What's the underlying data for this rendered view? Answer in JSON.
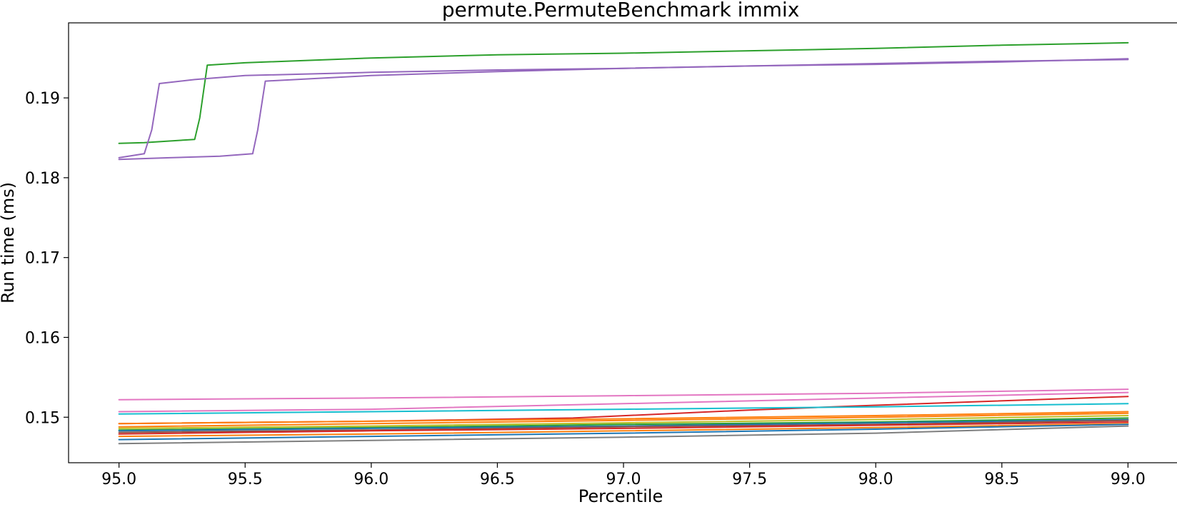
{
  "chart_data": {
    "type": "line",
    "title": "permute.PermuteBenchmark immix",
    "xlabel": "Percentile",
    "ylabel": "Run time (ms)",
    "xlim": [
      94.8,
      99.2
    ],
    "ylim": [
      0.1443,
      0.1994
    ],
    "xticks": [
      95.0,
      95.5,
      96.0,
      96.5,
      97.0,
      97.5,
      98.0,
      98.5,
      99.0
    ],
    "yticks": [
      0.15,
      0.16,
      0.17,
      0.18,
      0.19
    ],
    "grid": false,
    "legend": "none",
    "series": [
      {
        "color": "#2ca02c",
        "x": [
          95.0,
          95.1,
          95.2,
          95.3,
          95.32,
          95.35,
          95.5,
          96.0,
          96.5,
          97.0,
          97.5,
          98.0,
          98.5,
          99.0
        ],
        "y": [
          0.1843,
          0.1844,
          0.1846,
          0.1848,
          0.1875,
          0.1941,
          0.1944,
          0.195,
          0.1954,
          0.1956,
          0.1959,
          0.1962,
          0.1966,
          0.1969
        ]
      },
      {
        "color": "#9467bd",
        "x": [
          95.0,
          95.1,
          95.13,
          95.16,
          95.3,
          95.5,
          96.0,
          96.5,
          97.0,
          97.5,
          98.0,
          98.5,
          99.0
        ],
        "y": [
          0.1825,
          0.183,
          0.186,
          0.1918,
          0.1923,
          0.1928,
          0.1932,
          0.1935,
          0.1937,
          0.194,
          0.1942,
          0.1945,
          0.1949
        ]
      },
      {
        "color": "#9467bd",
        "x": [
          95.0,
          95.2,
          95.4,
          95.53,
          95.55,
          95.58,
          96.0,
          96.5,
          97.0,
          97.5,
          98.0,
          98.5,
          99.0
        ],
        "y": [
          0.1823,
          0.1825,
          0.1827,
          0.183,
          0.186,
          0.1921,
          0.1928,
          0.1933,
          0.1937,
          0.194,
          0.1943,
          0.1946,
          0.1948
        ]
      },
      {
        "color": "#e377c2",
        "x": [
          95.0,
          96.0,
          97.0,
          98.0,
          99.0
        ],
        "y": [
          0.1522,
          0.1524,
          0.1527,
          0.153,
          0.1535
        ]
      },
      {
        "color": "#e377c2",
        "x": [
          95.0,
          96.0,
          97.0,
          98.0,
          99.0
        ],
        "y": [
          0.1507,
          0.151,
          0.1517,
          0.1524,
          0.1531
        ]
      },
      {
        "color": "#d62728",
        "x": [
          95.0,
          96.0,
          96.8,
          97.5,
          98.0,
          99.0
        ],
        "y": [
          0.1492,
          0.1495,
          0.1499,
          0.1509,
          0.1515,
          0.1526
        ]
      },
      {
        "color": "#17becf",
        "x": [
          95.0,
          96.0,
          97.0,
          98.0,
          99.0
        ],
        "y": [
          0.1504,
          0.1507,
          0.151,
          0.1513,
          0.1517
        ]
      },
      {
        "color": "#ff7f0e",
        "x": [
          95.0,
          96.0,
          97.0,
          98.0,
          99.0
        ],
        "y": [
          0.1492,
          0.1495,
          0.1498,
          0.1502,
          0.1507
        ]
      },
      {
        "color": "#ff7f0e",
        "x": [
          95.0,
          96.0,
          97.0,
          98.0,
          99.0
        ],
        "y": [
          0.1488,
          0.1492,
          0.1496,
          0.15,
          0.1505
        ]
      },
      {
        "color": "#bcbd22",
        "x": [
          95.0,
          96.0,
          97.0,
          98.0,
          99.0
        ],
        "y": [
          0.1486,
          0.1489,
          0.1493,
          0.1497,
          0.1502
        ]
      },
      {
        "color": "#2ca02c",
        "x": [
          95.0,
          96.0,
          97.0,
          98.0,
          99.0
        ],
        "y": [
          0.1484,
          0.1487,
          0.1491,
          0.1494,
          0.1499
        ]
      },
      {
        "color": "#1f77b4",
        "x": [
          95.0,
          96.0,
          97.0,
          98.0,
          99.0
        ],
        "y": [
          0.1483,
          0.1486,
          0.1489,
          0.1493,
          0.1497
        ]
      },
      {
        "color": "#8c564b",
        "x": [
          95.0,
          96.0,
          97.0,
          98.0,
          99.0
        ],
        "y": [
          0.1481,
          0.1484,
          0.1488,
          0.1491,
          0.1496
        ]
      },
      {
        "color": "#d62728",
        "x": [
          95.0,
          96.0,
          97.0,
          98.0,
          99.0
        ],
        "y": [
          0.1479,
          0.1483,
          0.1486,
          0.149,
          0.1494
        ]
      },
      {
        "color": "#ff7f0e",
        "x": [
          95.0,
          96.0,
          97.0,
          98.0,
          99.0
        ],
        "y": [
          0.1476,
          0.1479,
          0.1483,
          0.1487,
          0.1492
        ]
      },
      {
        "color": "#1f77b4",
        "x": [
          95.0,
          96.0,
          97.0,
          98.0,
          99.0
        ],
        "y": [
          0.1472,
          0.1476,
          0.148,
          0.1485,
          0.1491
        ]
      },
      {
        "color": "#7f7f7f",
        "x": [
          95.0,
          96.0,
          97.0,
          98.0,
          99.0
        ],
        "y": [
          0.1467,
          0.1471,
          0.1475,
          0.148,
          0.1489
        ]
      }
    ]
  }
}
